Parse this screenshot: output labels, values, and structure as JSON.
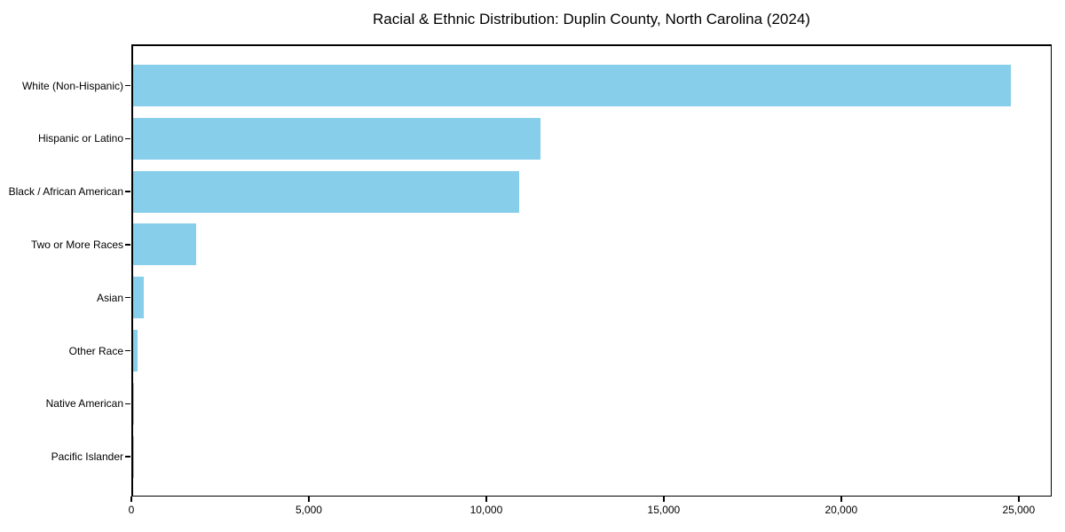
{
  "chart_data": {
    "type": "bar",
    "orientation": "horizontal",
    "title": "Racial & Ethnic Distribution: Duplin County, North Carolina (2024)",
    "categories": [
      "White (Non-Hispanic)",
      "Hispanic or Latino",
      "Black / African American",
      "Two or More Races",
      "Asian",
      "Other Race",
      "Native American",
      "Pacific Islander"
    ],
    "values": [
      24750,
      11480,
      10880,
      1780,
      310,
      130,
      45,
      10
    ],
    "xlabel": "",
    "ylabel": "",
    "xlim": [
      0,
      25930
    ],
    "x_ticks": [
      0,
      5000,
      10000,
      15000,
      20000,
      25000
    ],
    "x_tick_labels": [
      "0",
      "5,000",
      "10,000",
      "15,000",
      "20,000",
      "25,000"
    ],
    "bar_color": "#87CEEB",
    "axis_color": "#000000",
    "text_color": "#000000",
    "background_color": "#ffffff",
    "grid": false,
    "legend": "none",
    "value_labels_shown": false
  }
}
